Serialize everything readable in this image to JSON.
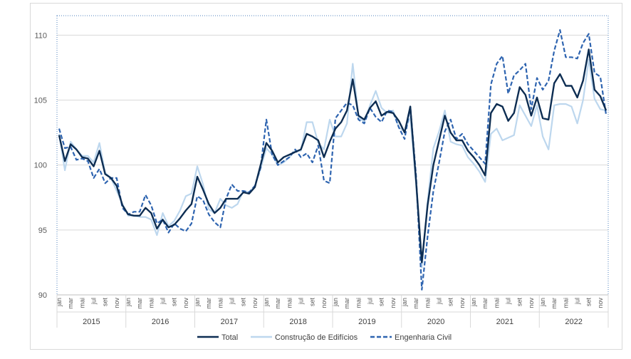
{
  "chart_data": {
    "type": "line",
    "title": "",
    "xlabel": "",
    "ylabel": "",
    "ylim": [
      90,
      111.5
    ],
    "yticks": [
      90,
      95,
      100,
      105,
      110
    ],
    "grid": true,
    "legend_position": "bottom",
    "years": [
      "2015",
      "2016",
      "2017",
      "2018",
      "2019",
      "2020",
      "2021",
      "2022"
    ],
    "month_labels": [
      "jan",
      "mar",
      "mai",
      "jul",
      "set",
      "nov"
    ],
    "colors": {
      "Total": "#0d2d52",
      "Construção de Edifícios": "#bdd7ee",
      "Engenharia Civil": "#2e64b0"
    },
    "series": [
      {
        "name": "Total",
        "values": [
          102.3,
          100.3,
          101.6,
          101.2,
          100.6,
          100.5,
          99.9,
          101.1,
          99.3,
          99.0,
          98.4,
          96.9,
          96.2,
          96.1,
          96.1,
          96.7,
          96.3,
          95.1,
          95.8,
          95.2,
          95.4,
          95.9,
          96.5,
          97.0,
          99.1,
          98.1,
          97.0,
          96.3,
          96.7,
          97.4,
          97.4,
          97.4,
          97.9,
          97.8,
          98.3,
          100.0,
          101.7,
          101.1,
          100.2,
          100.6,
          100.8,
          101.0,
          101.2,
          102.4,
          102.2,
          101.9,
          100.6,
          101.8,
          102.8,
          103.3,
          104.2,
          106.6,
          103.8,
          103.5,
          104.4,
          104.9,
          103.8,
          104.1,
          104.0,
          103.4,
          102.5,
          104.5,
          98.8,
          92.5,
          96.9,
          100.0,
          101.9,
          103.8,
          102.5,
          101.9,
          101.9,
          101.1,
          100.6,
          100.0,
          99.2,
          104.0,
          104.7,
          104.5,
          103.4,
          104.0,
          106.0,
          105.4,
          103.8,
          105.2,
          103.6,
          103.5,
          106.3,
          107.0,
          106.1,
          106.1,
          105.2,
          106.5,
          108.9,
          105.8,
          105.3,
          104.2
        ]
      },
      {
        "name": "Construção de Edifícios",
        "values": [
          102.4,
          99.6,
          101.8,
          101.2,
          100.7,
          100.7,
          100.2,
          101.7,
          99.4,
          99.0,
          98.0,
          97.0,
          96.1,
          96.1,
          96.0,
          96.0,
          95.8,
          94.6,
          96.3,
          95.3,
          95.7,
          96.5,
          97.6,
          97.8,
          99.9,
          98.5,
          96.6,
          96.3,
          97.4,
          96.9,
          96.7,
          97.0,
          98.0,
          97.9,
          98.4,
          99.7,
          101.3,
          100.8,
          100.0,
          100.2,
          100.6,
          101.1,
          101.1,
          103.3,
          103.3,
          101.7,
          101.2,
          103.5,
          102.2,
          102.2,
          103.2,
          107.8,
          103.7,
          103.3,
          104.6,
          105.7,
          104.4,
          104.0,
          104.2,
          102.9,
          102.6,
          103.7,
          98.5,
          92.1,
          97.2,
          101.3,
          102.6,
          104.2,
          101.8,
          101.6,
          101.5,
          100.6,
          100.1,
          99.5,
          98.7,
          102.4,
          102.8,
          101.9,
          102.1,
          102.3,
          104.6,
          103.8,
          103.0,
          104.6,
          102.2,
          101.2,
          104.6,
          104.7,
          104.7,
          104.5,
          103.2,
          105.0,
          108.1,
          105.1,
          104.3,
          104.2
        ]
      },
      {
        "name": "Engenharia Civil",
        "values": [
          102.8,
          101.3,
          101.4,
          100.4,
          100.5,
          100.3,
          99.0,
          99.7,
          98.6,
          99.0,
          99.0,
          96.7,
          96.2,
          96.4,
          96.4,
          97.7,
          96.9,
          95.5,
          95.8,
          94.8,
          95.5,
          95.1,
          94.9,
          95.5,
          97.6,
          97.3,
          96.2,
          95.6,
          95.2,
          97.4,
          98.5,
          98.0,
          98.0,
          97.9,
          98.4,
          99.8,
          103.5,
          100.8,
          100.0,
          100.3,
          100.6,
          101.2,
          100.6,
          100.9,
          100.2,
          101.5,
          98.8,
          98.6,
          103.6,
          104.2,
          104.8,
          104.6,
          103.5,
          103.2,
          104.4,
          103.7,
          103.3,
          104.2,
          104.1,
          102.9,
          102.0,
          104.5,
          99.2,
          90.4,
          94.5,
          98.0,
          100.2,
          102.6,
          103.5,
          102.0,
          102.4,
          101.6,
          101.1,
          100.6,
          100.1,
          106.2,
          107.8,
          108.4,
          105.5,
          106.9,
          107.3,
          107.8,
          104.3,
          106.7,
          105.8,
          106.5,
          108.8,
          110.4,
          108.3,
          108.3,
          108.2,
          109.4,
          110.1,
          107.1,
          106.8,
          103.9
        ]
      }
    ]
  },
  "legend": {
    "total": "Total",
    "edificios": "Construção de Edifícios",
    "civil": "Engenharia Civil"
  }
}
